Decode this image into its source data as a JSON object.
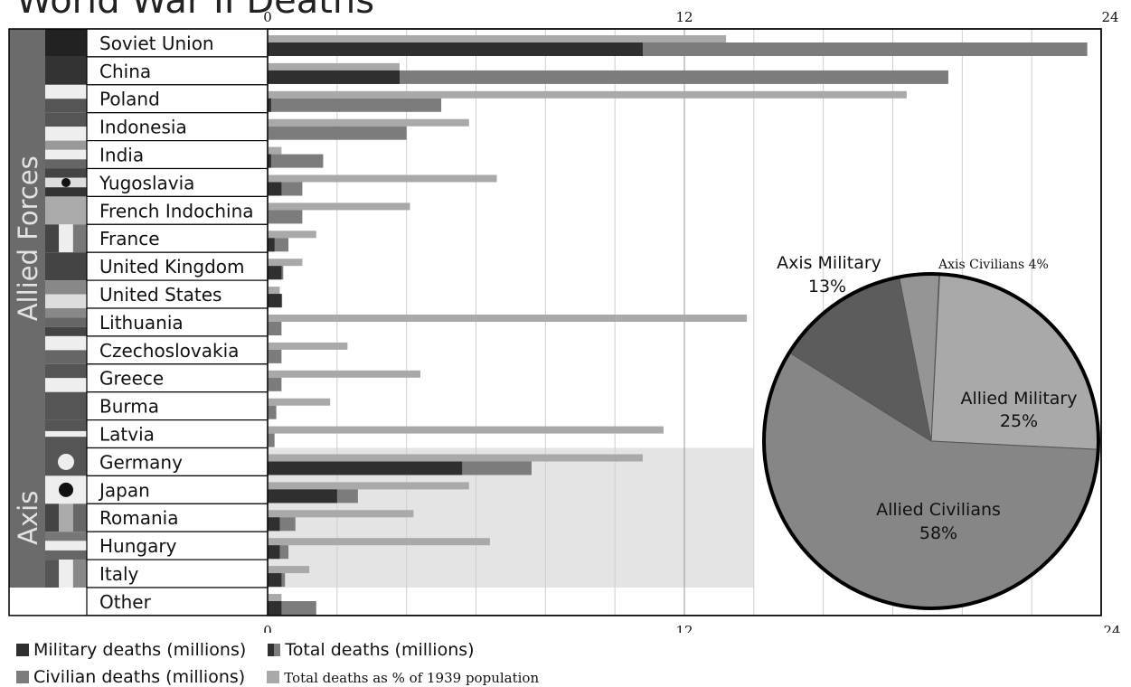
{
  "title": "World War II Deaths",
  "groups": [
    {
      "name": "Allied Forces",
      "from": 0,
      "to": 14
    },
    {
      "name": "Axis",
      "from": 15,
      "to": 19
    }
  ],
  "chart_data": [
    {
      "type": "bar",
      "title": "World War II Deaths",
      "x_ticks": [
        "0",
        "12",
        "24"
      ],
      "xlim": [
        0,
        24
      ],
      "grid": true,
      "categories": [
        "Soviet Union",
        "China",
        "Poland",
        "Indonesia",
        "India",
        "Yugoslavia",
        "French Indochina",
        "France",
        "United Kingdom",
        "United States",
        "Lithuania",
        "Czechoslovakia",
        "Greece",
        "Burma",
        "Latvia",
        "Germany",
        "Japan",
        "Romania",
        "Hungary",
        "Italy",
        "Other"
      ],
      "series": [
        {
          "name": "Military deaths (millions)",
          "values": [
            10.8,
            3.8,
            0.1,
            0,
            0.1,
            0.4,
            0,
            0.2,
            0.4,
            0.4,
            0,
            0,
            0,
            0,
            0,
            5.6,
            2.0,
            0.35,
            0.35,
            0.4,
            0.4
          ]
        },
        {
          "name": "Total deaths (millions)",
          "values": [
            23.6,
            19.6,
            5.0,
            4.0,
            1.6,
            1.0,
            1.0,
            0.6,
            0.45,
            0.42,
            0.4,
            0.4,
            0.4,
            0.25,
            0.2,
            7.6,
            2.6,
            0.8,
            0.6,
            0.5,
            1.4
          ]
        },
        {
          "name": "Total deaths as % of 1939 population",
          "values": [
            13.2,
            3.8,
            18.4,
            5.8,
            0.4,
            6.6,
            4.1,
            1.4,
            1.0,
            0.35,
            13.8,
            2.3,
            4.4,
            1.8,
            11.4,
            10.8,
            5.8,
            4.2,
            6.4,
            1.2,
            0.4
          ]
        }
      ],
      "legend": [
        "Military deaths (millions)",
        "Total deaths (millions)",
        "Civilian deaths (millions)",
        "Total deaths as % of 1939 population"
      ],
      "legend_position": "bottom-left"
    },
    {
      "type": "pie",
      "slices": [
        {
          "label": "Allied Military",
          "pct_label": "25%",
          "value": 25
        },
        {
          "label": "Allied Civilians",
          "pct_label": "58%",
          "value": 58
        },
        {
          "label": "Axis Military",
          "pct_label": "13%",
          "value": 13
        },
        {
          "label": "Axis Civilians",
          "pct_label": "4%",
          "value": 4
        }
      ]
    }
  ],
  "colors": {
    "military": "#2f2f2f",
    "civilian": "#7c7c7c",
    "percent": "#a9a9a9",
    "axis_band": "#e4e4e4",
    "group_bar": "#6b6b6b",
    "pie_allied_military": "#a9a9a9",
    "pie_allied_civilians": "#868686",
    "pie_axis_military": "#5c5c5c",
    "pie_axis_civilians": "#959595"
  },
  "flag_icons": [
    "soviet-union-flag-icon",
    "china-flag-icon",
    "poland-flag-icon",
    "indonesia-flag-icon",
    "india-flag-icon",
    "yugoslavia-flag-icon",
    "french-indochina-flag-icon",
    "france-flag-icon",
    "united-kingdom-flag-icon",
    "united-states-flag-icon",
    "lithuania-flag-icon",
    "czechoslovakia-flag-icon",
    "greece-flag-icon",
    "burma-flag-icon",
    "latvia-flag-icon",
    "germany-flag-icon",
    "japan-flag-icon",
    "romania-flag-icon",
    "hungary-flag-icon",
    "italy-flag-icon"
  ],
  "legend_labels": {
    "military": "Military deaths (millions)",
    "total": "Total deaths (millions)",
    "civilian": "Civilian deaths (millions)",
    "percent": "Total deaths as % of 1939 population"
  }
}
